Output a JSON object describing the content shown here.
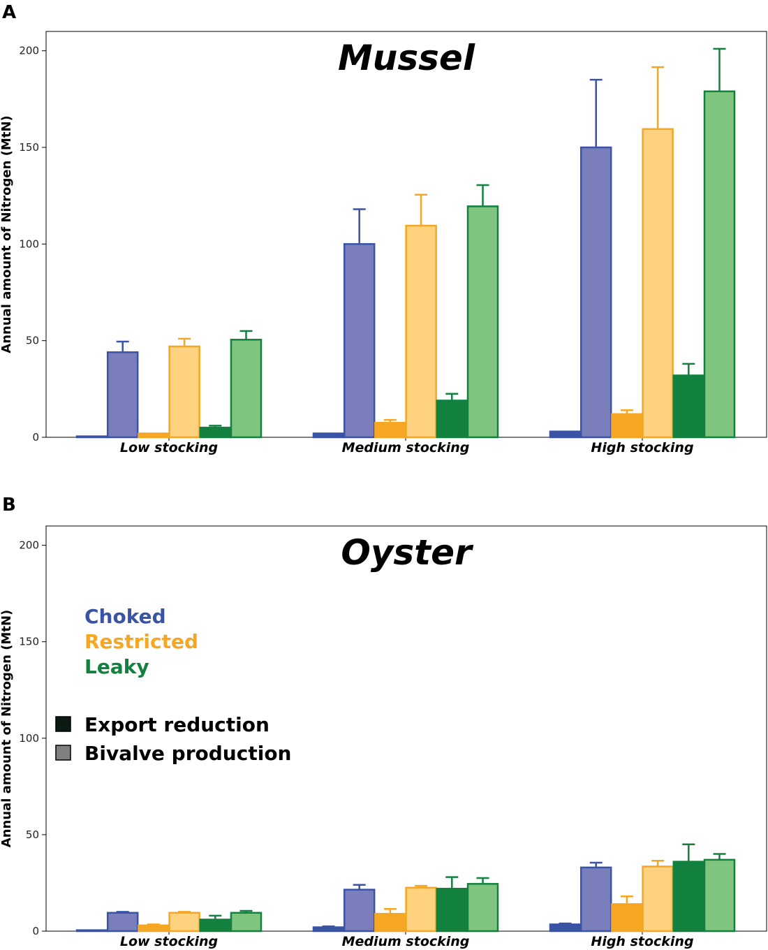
{
  "panel_labels": [
    "A",
    "B"
  ],
  "colors": {
    "choked_dark": "#3a53a4",
    "choked_light": "#7a7fbb",
    "restricted_dark": "#f5a623",
    "restricted_light": "#ffd280",
    "leaky_dark": "#12813f",
    "leaky_light": "#7fc580"
  },
  "legend": {
    "scenarios": [
      {
        "label": "Choked",
        "color": "#3a53a4"
      },
      {
        "label": "Restricted",
        "color": "#f5a623"
      },
      {
        "label": "Leaky",
        "color": "#12813f"
      }
    ],
    "types": [
      {
        "label": "Export reduction",
        "swatch": "#0b1a12"
      },
      {
        "label": "Bivalve production",
        "swatch": "#808080"
      }
    ]
  },
  "chart_data": [
    {
      "type": "bar",
      "title": "Mussel",
      "ylabel": "Annual amount of Nitrogen (MtN)",
      "xlabel": "",
      "ylim": [
        0,
        210
      ],
      "yticks": [
        0,
        50,
        100,
        150,
        200
      ],
      "categories": [
        "Low stocking",
        "Medium stocking",
        "High stocking"
      ],
      "series": [
        {
          "name": "Choked - Export reduction",
          "values": [
            0.5,
            2,
            3
          ],
          "errors": [
            0,
            0,
            0
          ]
        },
        {
          "name": "Choked - Bivalve production",
          "values": [
            44,
            100,
            150
          ],
          "errors": [
            5.5,
            18,
            35
          ]
        },
        {
          "name": "Restricted - Export reduction",
          "values": [
            2,
            7.5,
            12
          ],
          "errors": [
            0,
            1.5,
            2
          ]
        },
        {
          "name": "Restricted - Bivalve production",
          "values": [
            47,
            109.5,
            159.5
          ],
          "errors": [
            4,
            16,
            32
          ]
        },
        {
          "name": "Leaky - Export reduction",
          "values": [
            5,
            19,
            32
          ],
          "errors": [
            1,
            3.5,
            6
          ]
        },
        {
          "name": "Leaky - Bivalve production",
          "values": [
            50.5,
            119.5,
            179
          ],
          "errors": [
            4.5,
            11,
            22
          ]
        }
      ]
    },
    {
      "type": "bar",
      "title": "Oyster",
      "ylabel": "Annual amount of Nitrogen (MtN)",
      "xlabel": "",
      "ylim": [
        0,
        210
      ],
      "yticks": [
        0,
        50,
        100,
        150,
        200
      ],
      "categories": [
        "Low stocking",
        "Medium stocking",
        "High stocking"
      ],
      "series": [
        {
          "name": "Choked - Export reduction",
          "values": [
            0.5,
            2,
            3.5
          ],
          "errors": [
            0,
            0.5,
            0.5
          ]
        },
        {
          "name": "Choked - Bivalve production",
          "values": [
            9.5,
            21.5,
            33
          ],
          "errors": [
            0.5,
            2.5,
            2.5
          ]
        },
        {
          "name": "Restricted - Export reduction",
          "values": [
            3,
            9,
            14
          ],
          "errors": [
            0.5,
            2.5,
            4
          ]
        },
        {
          "name": "Restricted - Bivalve production",
          "values": [
            9.5,
            22.5,
            33.5
          ],
          "errors": [
            0.5,
            1,
            3
          ]
        },
        {
          "name": "Leaky - Export reduction",
          "values": [
            6,
            22,
            36
          ],
          "errors": [
            2,
            6,
            9
          ]
        },
        {
          "name": "Leaky - Bivalve production",
          "values": [
            9.5,
            24.5,
            37
          ],
          "errors": [
            1,
            3,
            3
          ]
        }
      ]
    }
  ]
}
